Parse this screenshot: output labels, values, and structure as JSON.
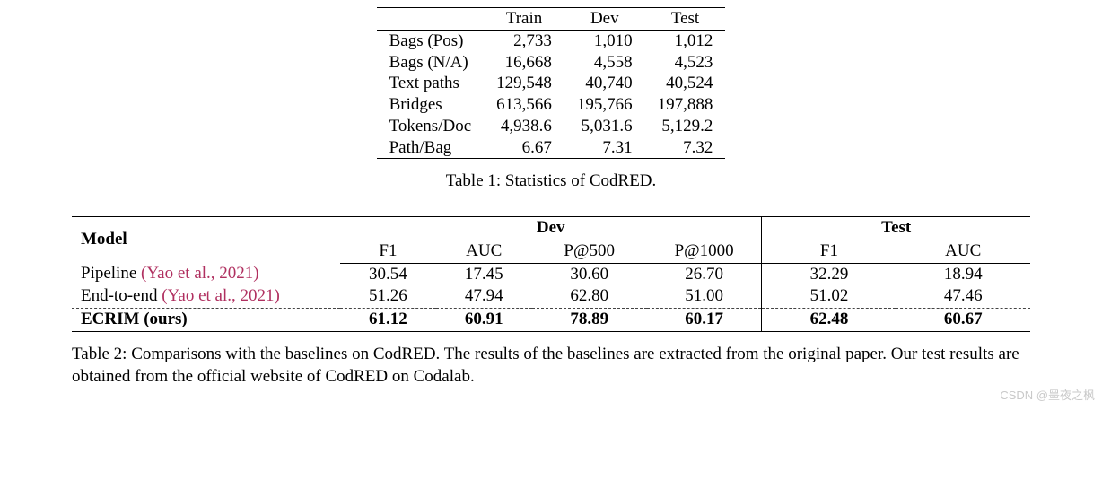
{
  "table1": {
    "columns": [
      "",
      "Train",
      "Dev",
      "Test"
    ],
    "rows": [
      [
        "Bags (Pos)",
        "2,733",
        "1,010",
        "1,012"
      ],
      [
        "Bags (N/A)",
        "16,668",
        "4,558",
        "4,523"
      ],
      [
        "Text paths",
        "129,548",
        "40,740",
        "40,524"
      ],
      [
        "Bridges",
        "613,566",
        "195,766",
        "197,888"
      ],
      [
        "Tokens/Doc",
        "4,938.6",
        "5,031.6",
        "5,129.2"
      ],
      [
        "Path/Bag",
        "6.67",
        "7.31",
        "7.32"
      ]
    ],
    "caption": "Table 1:  Statistics of CodRED."
  },
  "table2": {
    "header": {
      "model": "Model",
      "groups": [
        "Dev",
        "Test"
      ],
      "sub": [
        "F1",
        "AUC",
        "P@500",
        "P@1000",
        "F1",
        "AUC"
      ]
    },
    "rows": [
      {
        "name": "Pipeline ",
        "cite": "(Yao et al., 2021)",
        "vals": [
          "30.54",
          "17.45",
          "30.60",
          "26.70",
          "32.29",
          "18.94"
        ],
        "bold": false,
        "dashed": false
      },
      {
        "name": "End-to-end ",
        "cite": "(Yao et al., 2021)",
        "vals": [
          "51.26",
          "47.94",
          "62.80",
          "51.00",
          "51.02",
          "47.46"
        ],
        "bold": false,
        "dashed": false
      },
      {
        "name": "ECRIM (ours)",
        "cite": "",
        "vals": [
          "61.12",
          "60.91",
          "78.89",
          "60.17",
          "62.48",
          "60.67"
        ],
        "bold": true,
        "dashed": true
      }
    ],
    "caption": "Table 2:  Comparisons with the baselines on CodRED. The results of the baselines are extracted from the original paper. Our test results are obtained from the official website of CodRED on Codalab.",
    "vline_cols": [
      4
    ],
    "col_widths_pct": [
      28,
      10,
      10,
      12,
      12,
      14,
      14
    ]
  },
  "watermark": "CSDN @墨夜之枫"
}
